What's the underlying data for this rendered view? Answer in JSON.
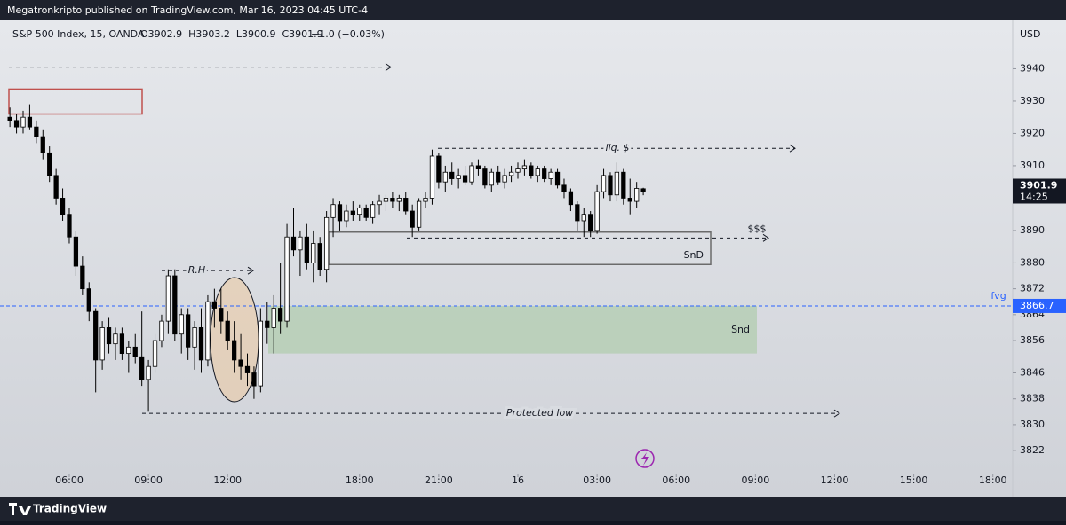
{
  "header": {
    "text": "Megatronkripto published on TradingView.com, Mar 16, 2023 04:45 UTC-4"
  },
  "footer": {
    "brand": "TradingView"
  },
  "chart_data": {
    "type": "candlestick",
    "symbol": "S&P 500 Index, 15, OANDA",
    "ohlc_text": "O3902.9  H3903.2  L3900.9  C3901.9",
    "change": "−1.0 (−0.03%)",
    "currency": "USD",
    "up_color": "#ffffff",
    "down_color": "#000000",
    "outline": "#000000",
    "xlim": [
      -1.5,
      152
    ],
    "xticks": [
      {
        "value": 9,
        "label": "06:00"
      },
      {
        "value": 21,
        "label": "09:00"
      },
      {
        "value": 33,
        "label": "12:00"
      },
      {
        "value": 53,
        "label": "18:00"
      },
      {
        "value": 65,
        "label": "21:00"
      },
      {
        "value": 77,
        "label": "16"
      },
      {
        "value": 89,
        "label": "03:00"
      },
      {
        "value": 101,
        "label": "06:00"
      },
      {
        "value": 113,
        "label": "09:00"
      },
      {
        "value": 125,
        "label": "12:00"
      },
      {
        "value": 137,
        "label": "15:00"
      },
      {
        "value": 149,
        "label": "18:00"
      }
    ],
    "ylim": [
      3816,
      3953
    ],
    "yticks": [
      3940,
      3930,
      3920,
      3910,
      3890,
      3880,
      3872,
      3864,
      3856,
      3846,
      3838,
      3830,
      3822
    ],
    "current_price": 3901.9,
    "countdown": "14:25",
    "fvg_price": 3866.7,
    "fvg_label": "fvg",
    "zones": [
      {
        "top": 3933.7,
        "bottom": 3926,
        "color": "#c0504d"
      },
      {
        "label": "SnD",
        "top": 3889.5,
        "bottom": 3879.5,
        "color": "#6b6b6b"
      },
      {
        "label": "Snd",
        "top": 3866.7,
        "bottom": 3852,
        "color": "#a9c9a4"
      }
    ],
    "levels": [
      {
        "price": 3940.5
      },
      {
        "price": 3915.4,
        "label": "liq. $"
      },
      {
        "price": 3887.7,
        "label": "$$$"
      },
      {
        "price": 3877.6,
        "label": "R.H"
      },
      {
        "price": 3833.5,
        "label": "Protected low"
      }
    ],
    "ohlc": [
      [
        3925,
        3928,
        3922,
        3924
      ],
      [
        3924,
        3926,
        3920,
        3922
      ],
      [
        3922,
        3927,
        3920,
        3925
      ],
      [
        3925,
        3929,
        3921,
        3922
      ],
      [
        3922,
        3924,
        3917,
        3919
      ],
      [
        3919,
        3921,
        3912,
        3914
      ],
      [
        3914,
        3916,
        3905,
        3907
      ],
      [
        3907,
        3909,
        3898,
        3900
      ],
      [
        3900,
        3903,
        3893,
        3895
      ],
      [
        3895,
        3897,
        3886,
        3888
      ],
      [
        3888,
        3890,
        3876,
        3879
      ],
      [
        3879,
        3882,
        3870,
        3872
      ],
      [
        3872,
        3874,
        3862,
        3865
      ],
      [
        3865,
        3866,
        3840,
        3850
      ],
      [
        3850,
        3862,
        3847,
        3860
      ],
      [
        3860,
        3863,
        3852,
        3855
      ],
      [
        3855,
        3860,
        3850,
        3858
      ],
      [
        3858,
        3860,
        3850,
        3852
      ],
      [
        3852,
        3856,
        3846,
        3854
      ],
      [
        3854,
        3858,
        3849,
        3851
      ],
      [
        3851,
        3865,
        3842,
        3844
      ],
      [
        3844,
        3850,
        3834,
        3848
      ],
      [
        3848,
        3858,
        3846,
        3856
      ],
      [
        3856,
        3864,
        3854,
        3862
      ],
      [
        3862,
        3878,
        3858,
        3876
      ],
      [
        3876,
        3878,
        3856,
        3858
      ],
      [
        3858,
        3866,
        3852,
        3864
      ],
      [
        3864,
        3866,
        3850,
        3854
      ],
      [
        3854,
        3862,
        3847,
        3860
      ],
      [
        3860,
        3866,
        3846,
        3850
      ],
      [
        3850,
        3870,
        3848,
        3868
      ],
      [
        3868,
        3872,
        3860,
        3866
      ],
      [
        3866,
        3872,
        3858,
        3862
      ],
      [
        3862,
        3865,
        3853,
        3856
      ],
      [
        3856,
        3862,
        3846,
        3850
      ],
      [
        3850,
        3858,
        3844,
        3848
      ],
      [
        3848,
        3852,
        3842,
        3846
      ],
      [
        3846,
        3848,
        3838,
        3842
      ],
      [
        3842,
        3866,
        3840,
        3862
      ],
      [
        3862,
        3868,
        3855,
        3860
      ],
      [
        3860,
        3870,
        3852,
        3866
      ],
      [
        3866,
        3880,
        3858,
        3862
      ],
      [
        3862,
        3892,
        3860,
        3888
      ],
      [
        3888,
        3897,
        3882,
        3884
      ],
      [
        3884,
        3890,
        3876,
        3888
      ],
      [
        3888,
        3892,
        3878,
        3880
      ],
      [
        3880,
        3890,
        3874,
        3886
      ],
      [
        3886,
        3888,
        3876,
        3878
      ],
      [
        3878,
        3896,
        3874,
        3894
      ],
      [
        3894,
        3900,
        3888,
        3898
      ],
      [
        3898,
        3899,
        3890,
        3893
      ],
      [
        3893,
        3898,
        3891,
        3896
      ],
      [
        3896,
        3899,
        3893,
        3895
      ],
      [
        3895,
        3898,
        3893,
        3897
      ],
      [
        3897,
        3898,
        3893,
        3894
      ],
      [
        3894,
        3899,
        3892,
        3898
      ],
      [
        3898,
        3901,
        3895,
        3899
      ],
      [
        3899,
        3901,
        3896,
        3900
      ],
      [
        3900,
        3902,
        3897,
        3899
      ],
      [
        3899,
        3901,
        3896,
        3900
      ],
      [
        3900,
        3902,
        3895,
        3896
      ],
      [
        3896,
        3898,
        3888,
        3891
      ],
      [
        3891,
        3900,
        3890,
        3899
      ],
      [
        3899,
        3902,
        3897,
        3900
      ],
      [
        3900,
        3915,
        3898,
        3913
      ],
      [
        3913,
        3914,
        3903,
        3905
      ],
      [
        3905,
        3910,
        3902,
        3908
      ],
      [
        3908,
        3911,
        3904,
        3906
      ],
      [
        3906,
        3909,
        3903,
        3907
      ],
      [
        3907,
        3910,
        3904,
        3905
      ],
      [
        3905,
        3911,
        3904,
        3910
      ],
      [
        3910,
        3912,
        3907,
        3909
      ],
      [
        3909,
        3910,
        3903,
        3904
      ],
      [
        3904,
        3909,
        3902,
        3908
      ],
      [
        3908,
        3910,
        3904,
        3905
      ],
      [
        3905,
        3909,
        3903,
        3907
      ],
      [
        3907,
        3910,
        3905,
        3908
      ],
      [
        3908,
        3911,
        3906,
        3909
      ],
      [
        3909,
        3912,
        3907,
        3910
      ],
      [
        3910,
        3911,
        3906,
        3907
      ],
      [
        3907,
        3910,
        3905,
        3909
      ],
      [
        3909,
        3910,
        3905,
        3906
      ],
      [
        3906,
        3909,
        3904,
        3908
      ],
      [
        3908,
        3909,
        3903,
        3904
      ],
      [
        3904,
        3906,
        3900,
        3902
      ],
      [
        3902,
        3903,
        3896,
        3898
      ],
      [
        3898,
        3899,
        3890,
        3893
      ],
      [
        3893,
        3897,
        3888,
        3895
      ],
      [
        3895,
        3896,
        3888,
        3890
      ],
      [
        3890,
        3904,
        3889,
        3902
      ],
      [
        3902,
        3909,
        3900,
        3907
      ],
      [
        3907,
        3908,
        3899,
        3901
      ],
      [
        3901,
        3911,
        3899,
        3908
      ],
      [
        3908,
        3909,
        3898,
        3900
      ],
      [
        3900,
        3906,
        3895,
        3899
      ],
      [
        3899,
        3905,
        3897,
        3903
      ],
      [
        3902.9,
        3903.2,
        3900.9,
        3901.9
      ]
    ]
  }
}
